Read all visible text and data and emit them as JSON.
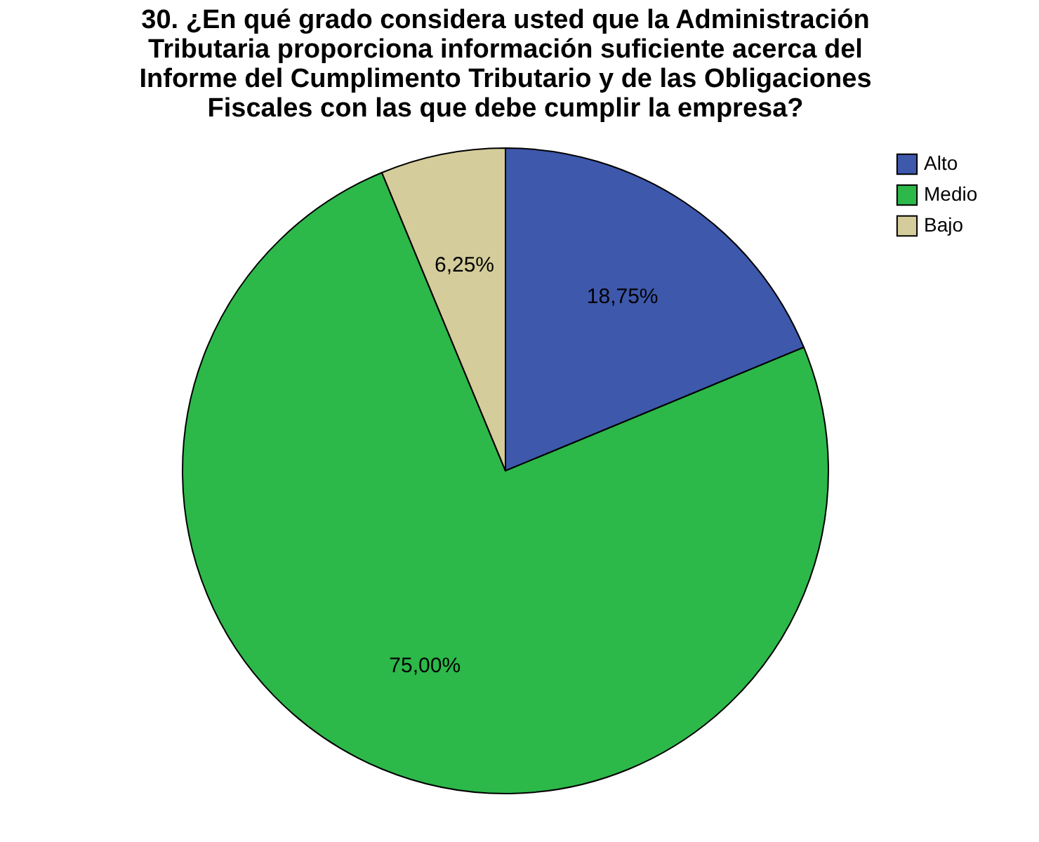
{
  "chart_data": {
    "type": "pie",
    "title": "30. ¿En qué grado considera usted que la Administración Tributaria proporciona información suficiente acerca del Informe del Cumplimento Tributario y de las Obligaciones Fiscales con las que debe cumplir la empresa?",
    "categories": [
      "Alto",
      "Medio",
      "Bajo"
    ],
    "values": [
      18.75,
      75.0,
      6.25
    ],
    "colors": [
      "#3e58ac",
      "#2db84a",
      "#d4cc9a"
    ],
    "value_labels": [
      "18,75%",
      "75,00%",
      "6,25%"
    ],
    "legend": "top right"
  }
}
